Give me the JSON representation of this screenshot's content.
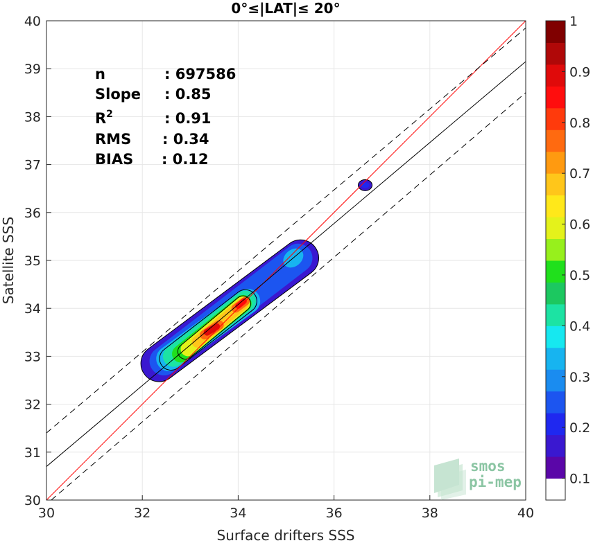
{
  "chart_data": {
    "type": "contour",
    "title": "0°≤|LAT|≤ 20°",
    "xlabel": "Surface drifters SSS",
    "ylabel": "Satellite SSS",
    "xlim": [
      30,
      40
    ],
    "ylim": [
      30,
      40
    ],
    "x_ticks": [
      "30",
      "32",
      "34",
      "36",
      "38",
      "40"
    ],
    "y_ticks": [
      "30",
      "31",
      "32",
      "33",
      "34",
      "35",
      "36",
      "37",
      "38",
      "39",
      "40"
    ],
    "grid": true,
    "stats": [
      {
        "label": "n",
        "value": ": 697586"
      },
      {
        "label": "Slope",
        "value": ": 0.85"
      },
      {
        "label": "R",
        "sup": "2",
        "value": ": 0.91"
      },
      {
        "label": "RMS",
        "value": ": 0.34"
      },
      {
        "label": "BIAS",
        "value": ": 0.12"
      }
    ],
    "lines": [
      {
        "name": "identity",
        "color": "#ff0000",
        "style": "solid",
        "points": [
          [
            30,
            30
          ],
          [
            40,
            40
          ]
        ]
      },
      {
        "name": "fit",
        "color": "#000000",
        "style": "solid",
        "points": [
          [
            30,
            30.7
          ],
          [
            40,
            39.15
          ]
        ]
      },
      {
        "name": "fit_upper",
        "color": "#000000",
        "style": "dashed",
        "points": [
          [
            30,
            31.4
          ],
          [
            40,
            39.85
          ]
        ]
      },
      {
        "name": "fit_lower",
        "color": "#000000",
        "style": "dashed",
        "points": [
          [
            30.1,
            30.0
          ],
          [
            40,
            38.5
          ]
        ]
      }
    ],
    "density_peaks": [
      {
        "x": 33.45,
        "y": 33.55,
        "value": 1.0
      },
      {
        "x": 34.05,
        "y": 34.1,
        "value": 0.95
      },
      {
        "x": 35.15,
        "y": 35.05,
        "value": 0.3
      },
      {
        "x": 36.65,
        "y": 36.55,
        "value": 0.1
      }
    ],
    "colorbar": {
      "ticks": [
        "0.1",
        "0.2",
        "0.3",
        "0.4",
        "0.5",
        "0.6",
        "0.7",
        "0.8",
        "0.9",
        "1"
      ],
      "levels": [
        "#ffffff",
        "#5a06a8",
        "#3a18d0",
        "#1f28f0",
        "#1c55f0",
        "#1a8cf0",
        "#17b4f0",
        "#16e8f0",
        "#1ce3a3",
        "#1cc860",
        "#20e01c",
        "#97f01c",
        "#e4f21b",
        "#ffe81a",
        "#ffc61a",
        "#ff9a10",
        "#ff6a10",
        "#ff3a0c",
        "#ff0d0d",
        "#e00a0a",
        "#b00808",
        "#800000"
      ]
    }
  },
  "watermark": {
    "line1": "smos",
    "line2": "pi-mep"
  }
}
